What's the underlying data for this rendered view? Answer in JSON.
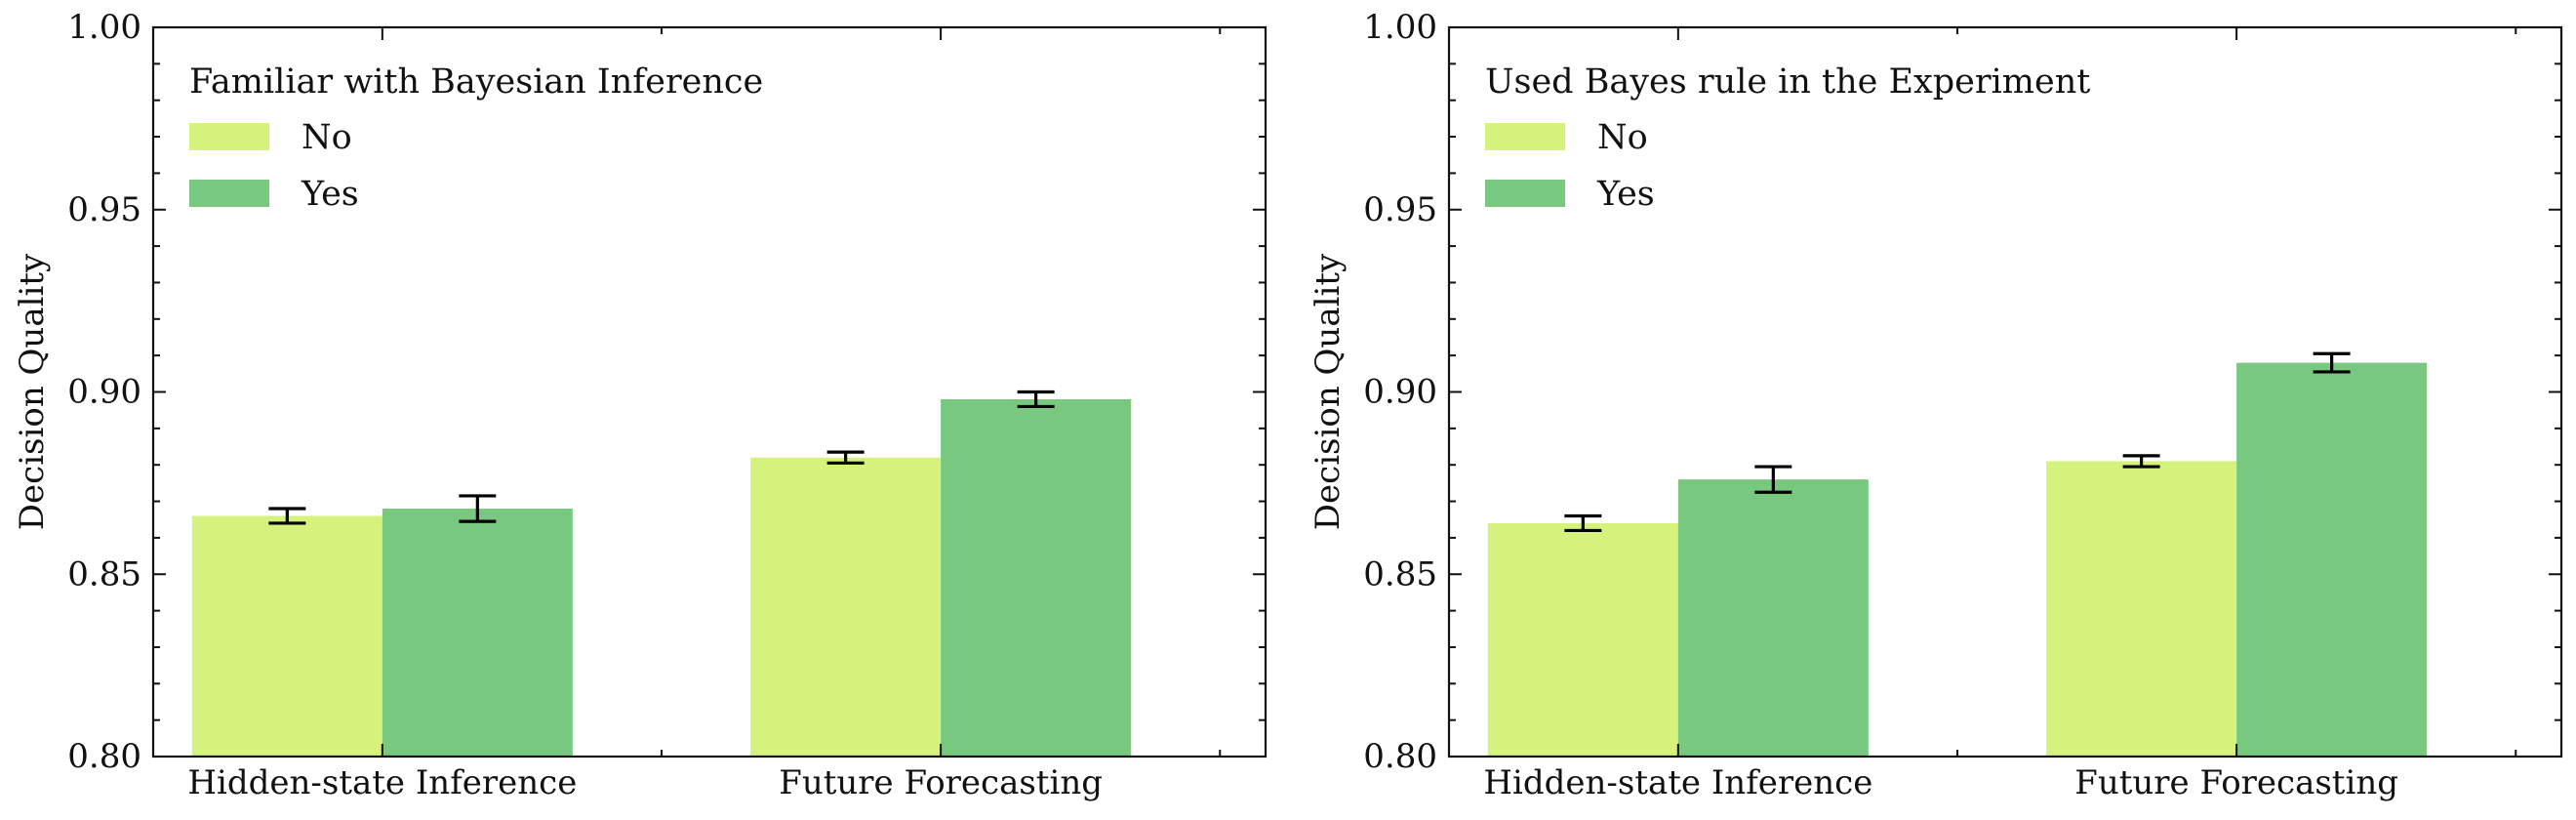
{
  "colors": {
    "No": "#d4f27c",
    "Yes": "#78c97f",
    "axis": "#111111",
    "errorbar": "#000000"
  },
  "chart_data": [
    {
      "type": "bar",
      "legend_title": "Familiar with Bayesian Inference",
      "legend_placement": "top-left",
      "ylabel": "Decision Quality",
      "xlabel": "",
      "ylim": [
        0.8,
        1.0
      ],
      "yticks": [
        "0.80",
        "0.85",
        "0.90",
        "0.95",
        "1.00"
      ],
      "categories": [
        "Hidden-state Inference",
        "Future Forecasting"
      ],
      "series": [
        {
          "name": "No",
          "values": [
            0.866,
            0.882
          ],
          "err": [
            0.002,
            0.0015
          ]
        },
        {
          "name": "Yes",
          "values": [
            0.868,
            0.898
          ],
          "err": [
            0.0035,
            0.002
          ]
        }
      ],
      "grid": false
    },
    {
      "type": "bar",
      "legend_title": "Used Bayes rule in the Experiment",
      "legend_placement": "top-left",
      "ylabel": "Decision Quality",
      "xlabel": "",
      "ylim": [
        0.8,
        1.0
      ],
      "yticks": [
        "0.80",
        "0.85",
        "0.90",
        "0.95",
        "1.00"
      ],
      "categories": [
        "Hidden-state Inference",
        "Future Forecasting"
      ],
      "series": [
        {
          "name": "No",
          "values": [
            0.864,
            0.881
          ],
          "err": [
            0.002,
            0.0015
          ]
        },
        {
          "name": "Yes",
          "values": [
            0.876,
            0.908
          ],
          "err": [
            0.0035,
            0.0025
          ]
        }
      ],
      "grid": false
    }
  ]
}
